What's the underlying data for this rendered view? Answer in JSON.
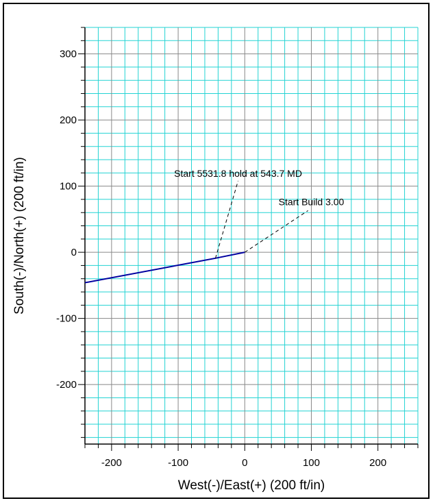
{
  "chart_data": {
    "type": "line",
    "title": "",
    "xlabel": "West(-)/East(+)  (200 ft/in)",
    "ylabel": "South(-)/North(+)  (200 ft/in)",
    "xlim": [
      -240,
      260
    ],
    "ylim": [
      -290,
      340
    ],
    "x_ticks": [
      -200,
      -100,
      0,
      100,
      200
    ],
    "y_ticks": [
      300,
      200,
      100,
      0,
      -100,
      -200
    ],
    "x_tick_labels": [
      "-200",
      "-100",
      "0",
      "100",
      "200"
    ],
    "y_tick_labels": [
      "300",
      "200",
      "100",
      "0",
      "-100",
      "-200"
    ],
    "grid": true,
    "minor_grid_step": 20,
    "major_grid_step": 100,
    "series": [
      {
        "x": [
          0,
          -44,
          -240
        ],
        "y": [
          0,
          -9,
          -46
        ],
        "color": "#0000a0"
      }
    ],
    "annotations": [
      {
        "text": "Start 5531.8 hold at 543.7 MD",
        "point": [
          -44,
          -9
        ],
        "text_anchor": [
          -10,
          108
        ],
        "leader_to": [
          -10,
          108
        ]
      },
      {
        "text": "Start Build 3.00",
        "point": [
          0,
          0
        ],
        "text_anchor": [
          100,
          65
        ],
        "leader_to": [
          95,
          63
        ]
      }
    ],
    "colors": {
      "minor_grid": "#22d3d3",
      "major_grid": "#888888",
      "line": "#0000a0"
    }
  }
}
